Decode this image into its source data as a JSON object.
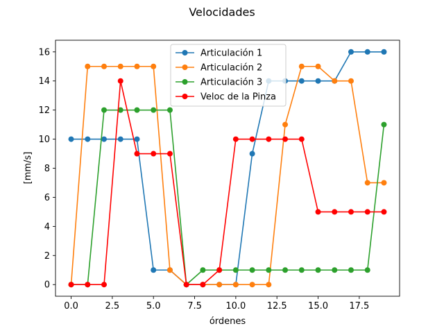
{
  "chart_data": {
    "type": "line",
    "title": "Velocidades",
    "xlabel": "órdenes",
    "ylabel": "[mm/s]",
    "xlim": [
      -0.95,
      19.95
    ],
    "ylim": [
      -0.8,
      16.8
    ],
    "xticks": [
      0.0,
      2.5,
      5.0,
      7.5,
      10.0,
      12.5,
      15.0,
      17.5
    ],
    "xtick_labels": [
      "0.0",
      "2.5",
      "5.0",
      "7.5",
      "10.0",
      "12.5",
      "15.0",
      "17.5"
    ],
    "yticks": [
      0,
      2,
      4,
      6,
      8,
      10,
      12,
      14,
      16
    ],
    "ytick_labels": [
      "0",
      "2",
      "4",
      "6",
      "8",
      "10",
      "12",
      "14",
      "16"
    ],
    "grid": false,
    "legend_position": "top-center",
    "x": [
      0,
      1,
      2,
      3,
      4,
      5,
      6,
      7,
      8,
      9,
      10,
      11,
      12,
      13,
      14,
      15,
      16,
      17,
      18,
      19
    ],
    "series": [
      {
        "name": "Articulación 1",
        "color": "#1f77b4",
        "values": [
          10,
          10,
          10,
          10,
          10,
          1,
          1,
          0,
          0,
          0,
          0,
          9,
          14,
          14,
          14,
          14,
          14,
          16,
          16,
          16
        ]
      },
      {
        "name": "Articulación 2",
        "color": "#ff7f0e",
        "values": [
          0,
          15,
          15,
          15,
          15,
          15,
          1,
          0,
          0,
          0,
          0,
          0,
          0,
          11,
          15,
          15,
          14,
          14,
          7,
          7
        ]
      },
      {
        "name": "Articulación 3",
        "color": "#2ca02c",
        "values": [
          0,
          0,
          12,
          12,
          12,
          12,
          12,
          0,
          1,
          1,
          1,
          1,
          1,
          1,
          1,
          1,
          1,
          1,
          1,
          11
        ]
      },
      {
        "name": "Veloc de la Pinza",
        "color": "#ff0000",
        "values": [
          0,
          0,
          0,
          14,
          9,
          9,
          9,
          0,
          0,
          1,
          10,
          10,
          10,
          10,
          10,
          5,
          5,
          5,
          5,
          5
        ]
      }
    ]
  }
}
